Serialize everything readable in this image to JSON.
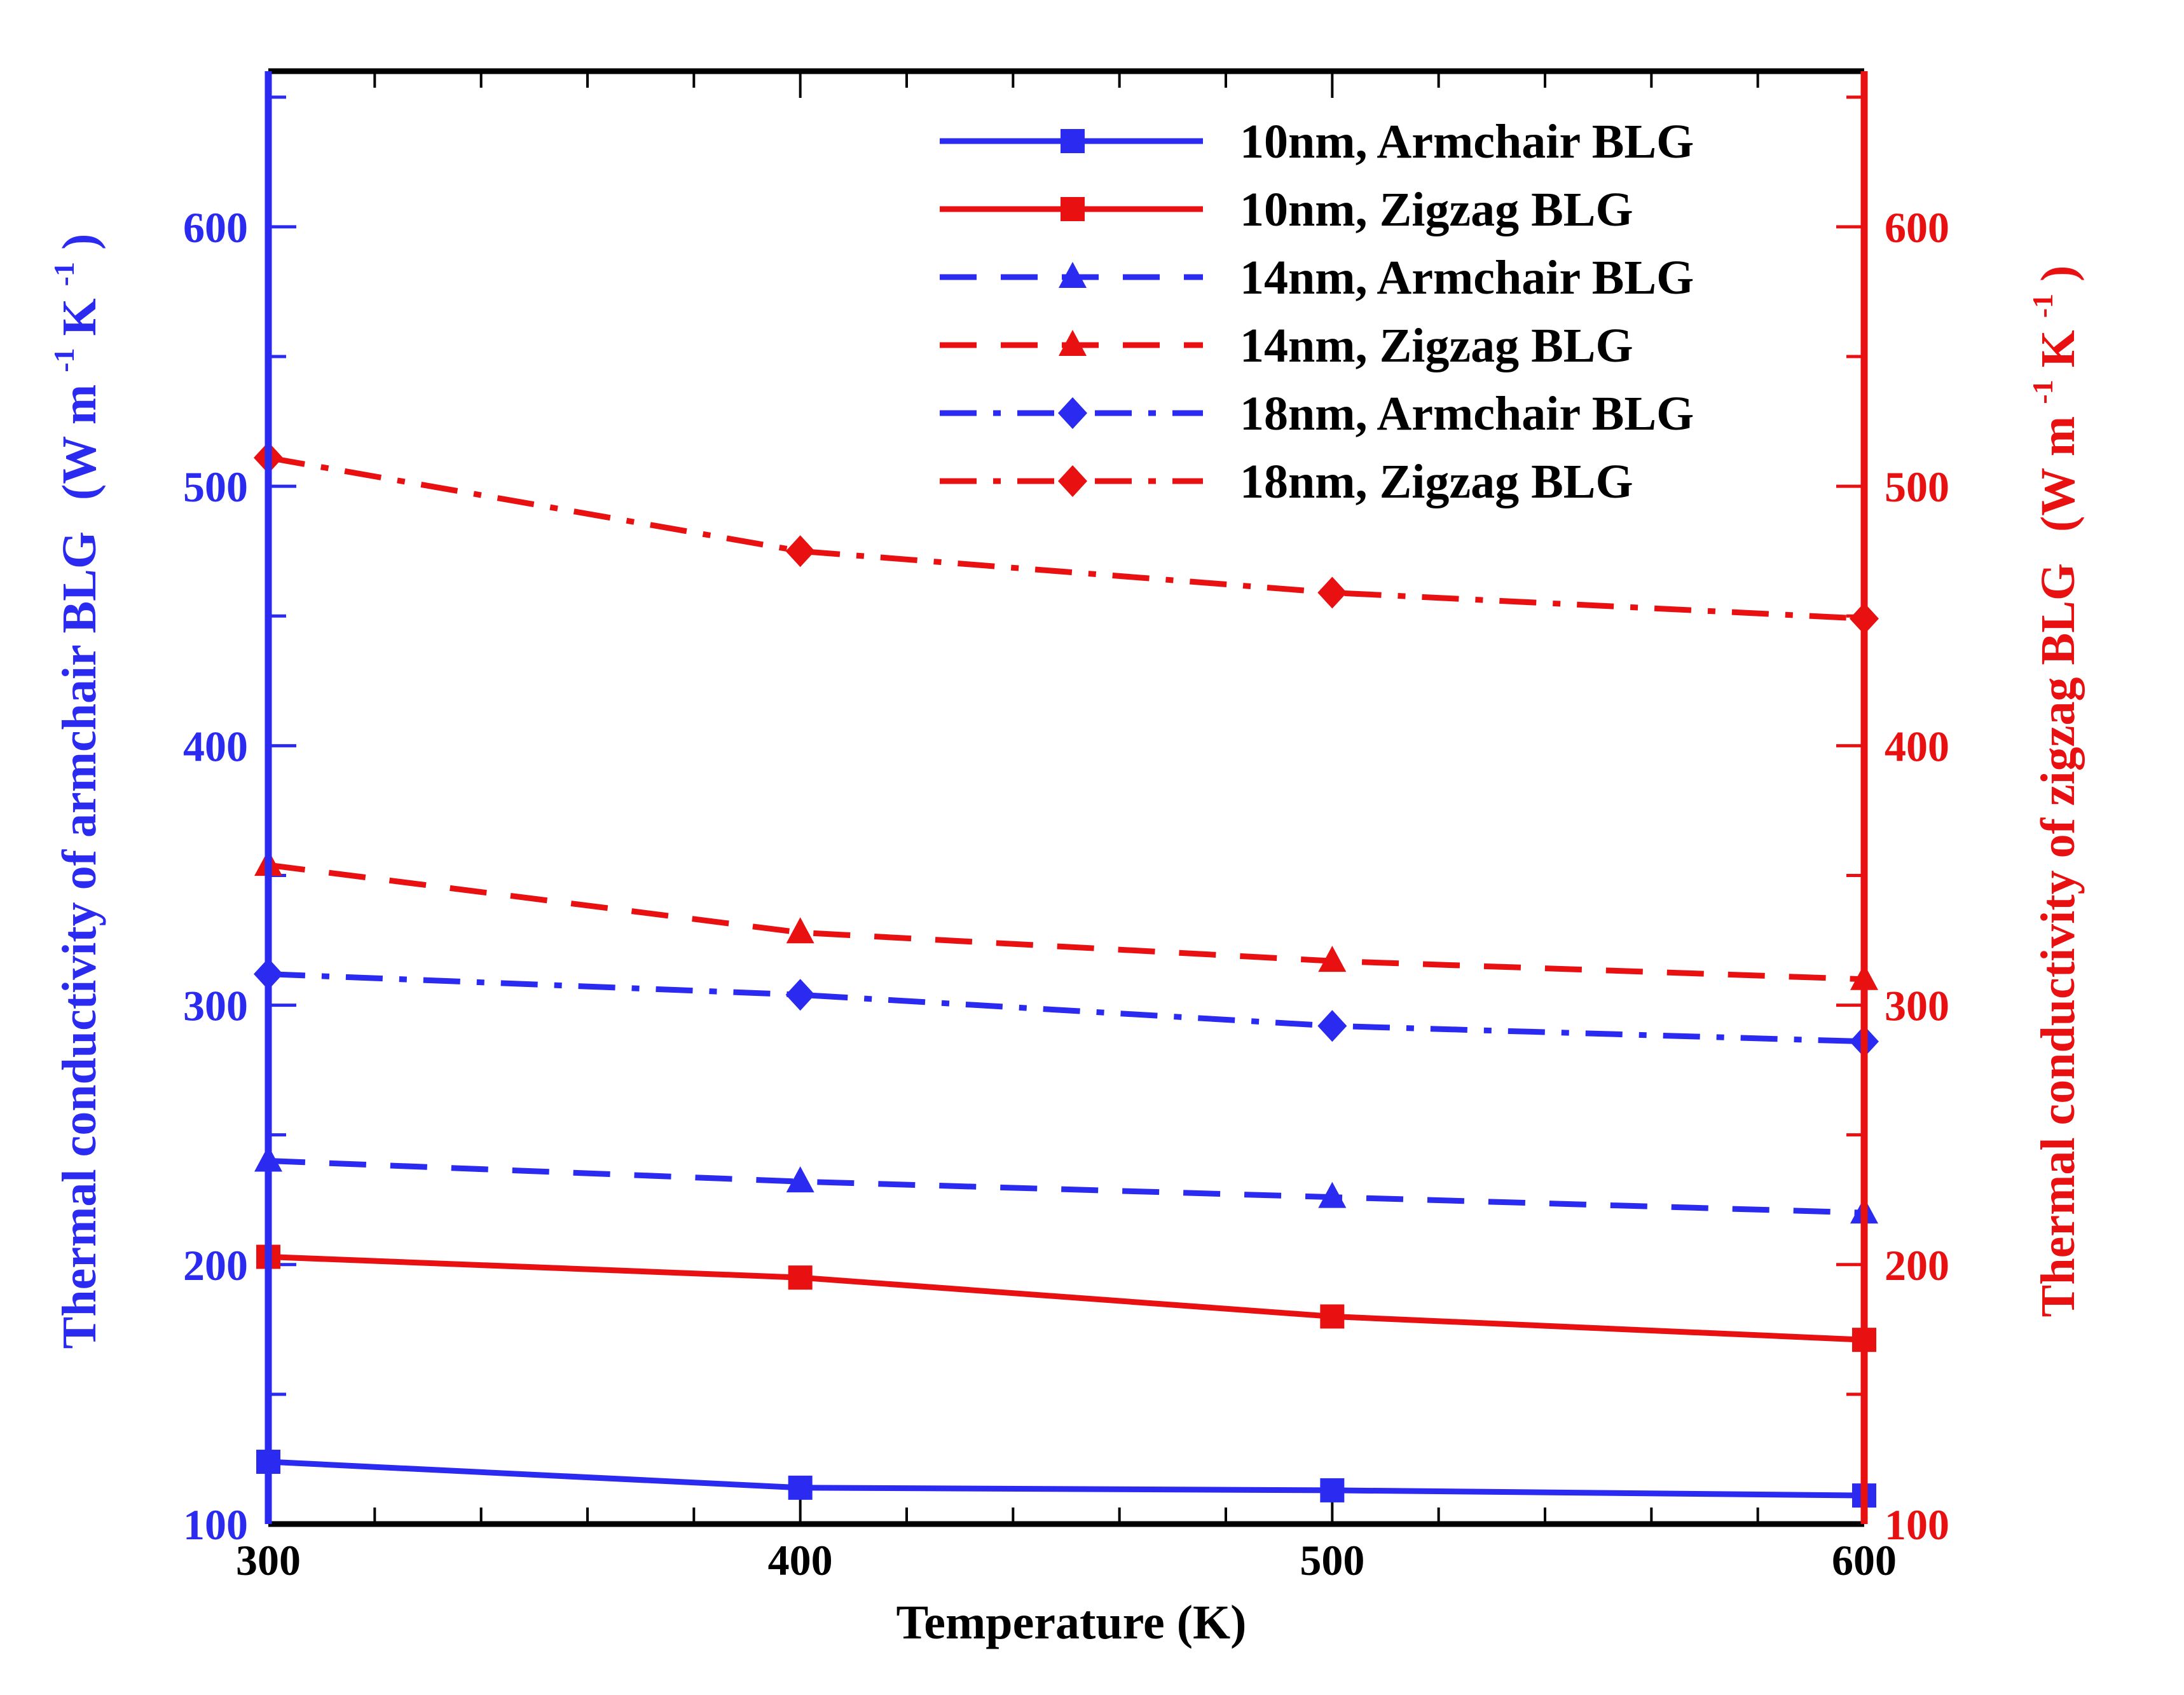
{
  "chart_data": {
    "type": "line",
    "x": [
      300,
      400,
      500,
      600
    ],
    "xlim": [
      300,
      600
    ],
    "xticks": [
      300,
      400,
      500,
      600
    ],
    "xlabel": "Temperature (K)",
    "y_left": {
      "label": "Thermal conductivity of armchair BLG",
      "unit": [
        "(W m",
        "-1",
        " K",
        "-1",
        ")"
      ],
      "lim": [
        100,
        660
      ],
      "ticks": [
        100,
        200,
        300,
        400,
        500,
        600
      ],
      "color": "#2a2af0"
    },
    "y_right": {
      "label": "Thermal conductivity of zigzag BLG",
      "unit": [
        "(W m",
        "-1",
        " K",
        "-1",
        ")"
      ],
      "lim": [
        100,
        660
      ],
      "ticks": [
        100,
        200,
        300,
        400,
        500,
        600
      ],
      "color": "#e81010"
    },
    "legend_position": "top-right",
    "series": [
      {
        "name": "10nm, Armchair BLG",
        "axis": "left",
        "color": "#2a2af0",
        "dash": "solid",
        "marker": "square",
        "values": [
          124,
          114,
          113,
          111
        ]
      },
      {
        "name": "10nm, Zigzag BLG",
        "axis": "right",
        "color": "#e81010",
        "dash": "solid",
        "marker": "square",
        "values": [
          203,
          195,
          180,
          171
        ]
      },
      {
        "name": "14nm, Armchair BLG",
        "axis": "left",
        "color": "#2a2af0",
        "dash": "dash",
        "marker": "triangle",
        "values": [
          240,
          232,
          226,
          220
        ]
      },
      {
        "name": "14nm, Zigzag BLG",
        "axis": "right",
        "color": "#e81010",
        "dash": "dash",
        "marker": "triangle",
        "values": [
          354,
          328,
          317,
          310
        ]
      },
      {
        "name": "18nm, Armchair BLG",
        "axis": "left",
        "color": "#2a2af0",
        "dash": "dashdot",
        "marker": "diamond",
        "values": [
          312,
          304,
          292,
          286
        ]
      },
      {
        "name": "18nm, Zigzag BLG",
        "axis": "right",
        "color": "#e81010",
        "dash": "dashdot",
        "marker": "diamond",
        "values": [
          511,
          475,
          459,
          449
        ]
      }
    ]
  }
}
